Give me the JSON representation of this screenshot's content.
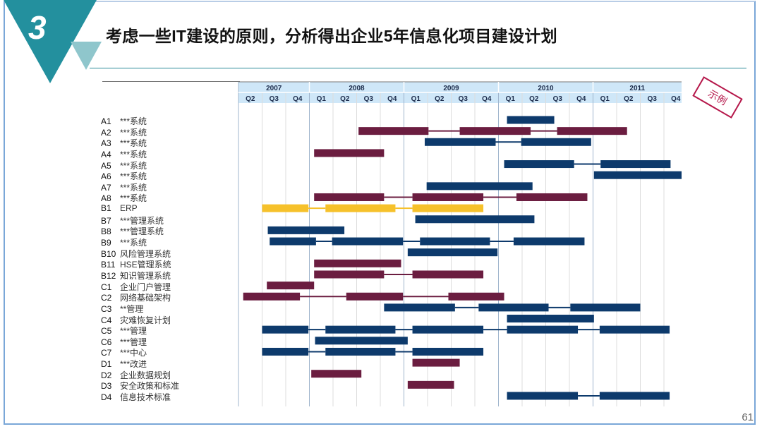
{
  "slide": {
    "number": "3",
    "title": "考虑一些IT建设的原则，分析得出企业5年信息化项目建设计划",
    "stamp": "示例",
    "page_number": "61"
  },
  "colors": {
    "navy": "#0d3a6c",
    "maroon": "#6b1d40",
    "yellow": "#f6c12b",
    "header_bg": "#cfe7f8",
    "teal": "#23909e"
  },
  "chart_data": {
    "type": "gantt",
    "x_range": [
      2007.25,
      2011.94
    ],
    "years": [
      {
        "label": "2007",
        "start": 2007.25,
        "end": 2008.0
      },
      {
        "label": "2008",
        "start": 2008.0,
        "end": 2009.0
      },
      {
        "label": "2009",
        "start": 2009.0,
        "end": 2010.0
      },
      {
        "label": "2010",
        "start": 2010.0,
        "end": 2011.0
      },
      {
        "label": "2011",
        "start": 2011.0,
        "end": 2012.0
      }
    ],
    "quarters": [
      "Q2",
      "Q3",
      "Q4",
      "Q1",
      "Q2",
      "Q3",
      "Q4",
      "Q1",
      "Q2",
      "Q3",
      "Q4",
      "Q1",
      "Q2",
      "Q3",
      "Q4",
      "Q1",
      "Q2",
      "Q3",
      "Q4"
    ],
    "rows": [
      {
        "code": "A1",
        "name": "***系统",
        "color": "navy",
        "bars": [
          [
            2010.09,
            2010.59
          ]
        ]
      },
      {
        "code": "A2",
        "name": "***系统",
        "color": "maroon",
        "bars": [
          [
            2008.52,
            2009.26
          ],
          [
            2009.59,
            2010.34
          ],
          [
            2010.62,
            2011.36
          ]
        ]
      },
      {
        "code": "A3",
        "name": "***系统",
        "color": "navy",
        "bars": [
          [
            2009.22,
            2009.97
          ],
          [
            2010.24,
            2010.98
          ]
        ]
      },
      {
        "code": "A4",
        "name": "***系统",
        "color": "maroon",
        "bars": [
          [
            2008.05,
            2008.79
          ]
        ]
      },
      {
        "code": "A5",
        "name": "***系统",
        "color": "navy",
        "bars": [
          [
            2010.06,
            2010.8
          ],
          [
            2011.08,
            2011.82
          ]
        ]
      },
      {
        "code": "A6",
        "name": "***系统",
        "color": "navy",
        "bars": [
          [
            2011.01,
            2011.94
          ]
        ]
      },
      {
        "code": "A7",
        "name": "***系统",
        "color": "navy",
        "bars": [
          [
            2009.24,
            2010.36
          ]
        ]
      },
      {
        "code": "A8",
        "name": "***系统",
        "color": "maroon",
        "bars": [
          [
            2008.05,
            2008.79
          ],
          [
            2009.09,
            2009.84
          ],
          [
            2010.19,
            2010.94
          ]
        ]
      },
      {
        "code": "B1",
        "name": "ERP",
        "color": "yellow",
        "bars": [
          [
            2007.5,
            2007.99
          ],
          [
            2008.17,
            2008.91
          ],
          [
            2009.09,
            2009.84
          ]
        ]
      },
      {
        "code": "B7",
        "name": "***管理系统",
        "color": "navy",
        "bars": [
          [
            2009.12,
            2010.38
          ]
        ]
      },
      {
        "code": "B8",
        "name": "***管理系统",
        "color": "navy",
        "bars": [
          [
            2007.56,
            2008.37
          ]
        ]
      },
      {
        "code": "B9",
        "name": "***系统",
        "color": "navy",
        "bars": [
          [
            2007.58,
            2008.07
          ],
          [
            2008.24,
            2008.99
          ],
          [
            2009.17,
            2009.91
          ],
          [
            2010.16,
            2010.91
          ]
        ]
      },
      {
        "code": "B10",
        "name": "风险管理系统",
        "color": "navy",
        "bars": [
          [
            2009.04,
            2009.99
          ]
        ]
      },
      {
        "code": "B11",
        "name": "HSE管理系统",
        "color": "maroon",
        "bars": [
          [
            2008.05,
            2008.97
          ]
        ]
      },
      {
        "code": "B12",
        "name": "知识管理系统",
        "color": "maroon",
        "bars": [
          [
            2008.05,
            2008.79
          ],
          [
            2009.09,
            2009.84
          ]
        ]
      },
      {
        "code": "C1",
        "name": "企业门户管理",
        "color": "maroon",
        "bars": [
          [
            2007.55,
            2008.05
          ]
        ]
      },
      {
        "code": "C2",
        "name": "网络基础架构",
        "color": "maroon",
        "bars": [
          [
            2007.3,
            2007.9
          ],
          [
            2008.39,
            2008.99
          ],
          [
            2009.47,
            2010.06
          ]
        ]
      },
      {
        "code": "C3",
        "name": "**管理",
        "color": "navy",
        "bars": [
          [
            2008.79,
            2009.54
          ],
          [
            2009.79,
            2010.53
          ],
          [
            2010.76,
            2011.5
          ]
        ]
      },
      {
        "code": "C4",
        "name": "灾难恢复计划",
        "color": "navy",
        "bars": [
          [
            2010.09,
            2011.01
          ]
        ]
      },
      {
        "code": "C5",
        "name": "***管理",
        "color": "navy",
        "bars": [
          [
            2007.5,
            2007.99
          ],
          [
            2008.17,
            2008.91
          ],
          [
            2009.09,
            2009.84
          ],
          [
            2010.09,
            2010.84
          ],
          [
            2011.07,
            2011.81
          ]
        ]
      },
      {
        "code": "C6",
        "name": "***管理",
        "color": "navy",
        "bars": [
          [
            2008.06,
            2009.04
          ]
        ]
      },
      {
        "code": "C7",
        "name": "***中心",
        "color": "navy",
        "bars": [
          [
            2007.5,
            2007.99
          ],
          [
            2008.17,
            2008.91
          ],
          [
            2009.09,
            2009.84
          ]
        ]
      },
      {
        "code": "D1",
        "name": "***改进",
        "color": "maroon",
        "bars": [
          [
            2009.09,
            2009.59
          ]
        ]
      },
      {
        "code": "D2",
        "name": "企业数据规划",
        "color": "maroon",
        "bars": [
          [
            2008.02,
            2008.55
          ]
        ]
      },
      {
        "code": "D3",
        "name": "安全政策和标准",
        "color": "maroon",
        "bars": [
          [
            2009.04,
            2009.53
          ]
        ]
      },
      {
        "code": "D4",
        "name": "信息技术标准",
        "color": "navy",
        "bars": [
          [
            2010.09,
            2010.84
          ],
          [
            2011.07,
            2011.81
          ]
        ]
      }
    ]
  }
}
